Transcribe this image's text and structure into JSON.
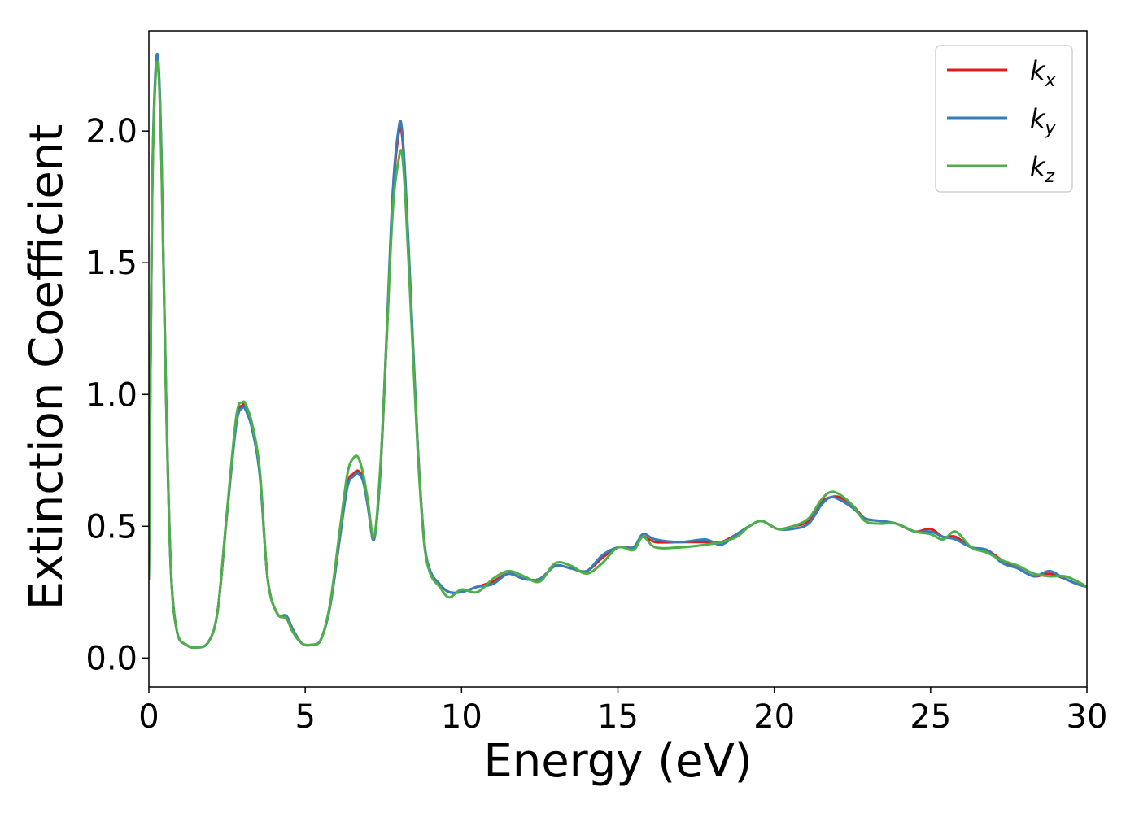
{
  "chart_data": {
    "type": "line",
    "xlabel": "Energy (eV)",
    "ylabel": "Extinction Coefficient",
    "xlim": [
      0,
      30
    ],
    "ylim": [
      -0.11,
      2.38
    ],
    "xticks": [
      "0",
      "5",
      "10",
      "15",
      "20",
      "25",
      "30"
    ],
    "yticks": [
      "0.0",
      "0.5",
      "1.0",
      "1.5",
      "2.0"
    ],
    "grid": false,
    "legend_position": "top-right",
    "series": [
      {
        "name": "k_x",
        "label_base": "k",
        "label_sub": "x",
        "color": "#e41a1c",
        "x": [
          0,
          0.1,
          0.2,
          0.3,
          0.4,
          0.55,
          0.7,
          0.9,
          1.2,
          1.5,
          1.9,
          2.2,
          2.5,
          2.8,
          3.0,
          3.1,
          3.3,
          3.55,
          3.8,
          4.1,
          4.4,
          4.6,
          4.9,
          5.2,
          5.5,
          5.8,
          6.1,
          6.35,
          6.55,
          6.7,
          6.85,
          7.0,
          7.2,
          7.4,
          7.6,
          7.8,
          8.0,
          8.1,
          8.2,
          8.4,
          8.6,
          8.8,
          9.0,
          9.3,
          9.6,
          10.0,
          10.5,
          11.0,
          11.5,
          12.0,
          12.5,
          13.0,
          13.5,
          14.0,
          14.5,
          15.0,
          15.5,
          15.8,
          16.2,
          17.0,
          17.8,
          18.3,
          18.8,
          19.2,
          19.6,
          20.1,
          20.6,
          21.1,
          21.5,
          21.8,
          22.1,
          22.5,
          22.9,
          23.4,
          23.9,
          24.5,
          25.0,
          25.4,
          25.8,
          26.3,
          26.8,
          27.3,
          27.8,
          28.3,
          28.8,
          29.3,
          29.7,
          30.0
        ],
        "y": [
          0.3,
          1.7,
          2.18,
          2.26,
          1.9,
          1.0,
          0.35,
          0.1,
          0.05,
          0.04,
          0.06,
          0.18,
          0.55,
          0.9,
          0.96,
          0.95,
          0.88,
          0.7,
          0.3,
          0.17,
          0.15,
          0.1,
          0.055,
          0.05,
          0.07,
          0.2,
          0.45,
          0.66,
          0.7,
          0.71,
          0.68,
          0.58,
          0.45,
          0.7,
          1.2,
          1.75,
          2.0,
          1.98,
          1.8,
          1.3,
          0.8,
          0.45,
          0.33,
          0.28,
          0.25,
          0.25,
          0.27,
          0.29,
          0.32,
          0.3,
          0.3,
          0.35,
          0.34,
          0.33,
          0.38,
          0.42,
          0.42,
          0.46,
          0.44,
          0.44,
          0.44,
          0.44,
          0.47,
          0.5,
          0.52,
          0.49,
          0.5,
          0.52,
          0.59,
          0.61,
          0.61,
          0.58,
          0.53,
          0.52,
          0.51,
          0.48,
          0.49,
          0.46,
          0.46,
          0.42,
          0.41,
          0.37,
          0.34,
          0.31,
          0.32,
          0.3,
          0.28,
          0.27
        ]
      },
      {
        "name": "k_y",
        "label_base": "k",
        "label_sub": "y",
        "color": "#377eb8",
        "x": [
          0,
          0.1,
          0.2,
          0.3,
          0.4,
          0.55,
          0.7,
          0.9,
          1.2,
          1.5,
          1.9,
          2.2,
          2.5,
          2.8,
          3.0,
          3.1,
          3.3,
          3.55,
          3.8,
          4.1,
          4.4,
          4.6,
          4.9,
          5.2,
          5.5,
          5.8,
          6.1,
          6.35,
          6.55,
          6.7,
          6.85,
          7.0,
          7.2,
          7.4,
          7.6,
          7.8,
          8.0,
          8.1,
          8.2,
          8.4,
          8.6,
          8.8,
          9.0,
          9.3,
          9.6,
          10.0,
          10.5,
          11.0,
          11.5,
          12.0,
          12.5,
          13.0,
          13.5,
          14.0,
          14.5,
          15.0,
          15.5,
          15.8,
          16.2,
          17.0,
          17.8,
          18.3,
          18.8,
          19.2,
          19.6,
          20.1,
          20.6,
          21.1,
          21.5,
          21.8,
          22.1,
          22.5,
          22.9,
          23.4,
          23.9,
          24.5,
          25.0,
          25.4,
          25.8,
          26.3,
          26.8,
          27.3,
          27.8,
          28.3,
          28.8,
          29.3,
          29.7,
          30.0
        ],
        "y": [
          0.3,
          1.72,
          2.2,
          2.27,
          1.92,
          1.0,
          0.35,
          0.1,
          0.05,
          0.04,
          0.06,
          0.18,
          0.55,
          0.89,
          0.95,
          0.94,
          0.87,
          0.69,
          0.3,
          0.17,
          0.16,
          0.11,
          0.055,
          0.05,
          0.07,
          0.2,
          0.45,
          0.65,
          0.69,
          0.7,
          0.67,
          0.58,
          0.45,
          0.7,
          1.22,
          1.77,
          2.02,
          2.0,
          1.82,
          1.32,
          0.8,
          0.45,
          0.33,
          0.28,
          0.25,
          0.25,
          0.27,
          0.28,
          0.32,
          0.3,
          0.3,
          0.35,
          0.34,
          0.33,
          0.39,
          0.42,
          0.42,
          0.47,
          0.45,
          0.44,
          0.45,
          0.43,
          0.47,
          0.5,
          0.52,
          0.49,
          0.49,
          0.51,
          0.58,
          0.61,
          0.6,
          0.57,
          0.53,
          0.52,
          0.51,
          0.48,
          0.48,
          0.46,
          0.45,
          0.42,
          0.41,
          0.36,
          0.34,
          0.31,
          0.33,
          0.3,
          0.28,
          0.27
        ]
      },
      {
        "name": "k_z",
        "label_base": "k",
        "label_sub": "z",
        "color": "#4daf4a",
        "x": [
          0,
          0.1,
          0.2,
          0.3,
          0.4,
          0.55,
          0.7,
          0.9,
          1.2,
          1.5,
          1.9,
          2.2,
          2.5,
          2.8,
          3.0,
          3.1,
          3.3,
          3.55,
          3.8,
          4.1,
          4.4,
          4.6,
          4.9,
          5.2,
          5.5,
          5.8,
          6.1,
          6.35,
          6.55,
          6.7,
          6.85,
          7.0,
          7.2,
          7.4,
          7.6,
          7.8,
          8.0,
          8.1,
          8.2,
          8.4,
          8.6,
          8.8,
          9.0,
          9.3,
          9.6,
          10.0,
          10.5,
          11.0,
          11.5,
          12.0,
          12.5,
          13.0,
          13.5,
          14.0,
          14.5,
          15.0,
          15.5,
          15.8,
          16.2,
          17.0,
          17.8,
          18.3,
          18.8,
          19.2,
          19.6,
          20.1,
          20.6,
          21.1,
          21.5,
          21.8,
          22.1,
          22.5,
          22.9,
          23.4,
          23.9,
          24.5,
          25.0,
          25.4,
          25.8,
          26.3,
          26.8,
          27.3,
          27.8,
          28.3,
          28.8,
          29.3,
          29.7,
          30.0
        ],
        "y": [
          0.3,
          1.7,
          2.17,
          2.24,
          1.88,
          0.98,
          0.34,
          0.1,
          0.05,
          0.04,
          0.06,
          0.18,
          0.56,
          0.92,
          0.97,
          0.96,
          0.89,
          0.71,
          0.3,
          0.17,
          0.15,
          0.1,
          0.055,
          0.05,
          0.07,
          0.21,
          0.48,
          0.7,
          0.76,
          0.76,
          0.7,
          0.6,
          0.46,
          0.72,
          1.2,
          1.7,
          1.9,
          1.91,
          1.75,
          1.27,
          0.78,
          0.44,
          0.32,
          0.27,
          0.23,
          0.26,
          0.25,
          0.3,
          0.33,
          0.31,
          0.29,
          0.36,
          0.35,
          0.32,
          0.36,
          0.42,
          0.41,
          0.46,
          0.42,
          0.42,
          0.43,
          0.44,
          0.46,
          0.5,
          0.52,
          0.49,
          0.5,
          0.53,
          0.6,
          0.63,
          0.62,
          0.58,
          0.52,
          0.51,
          0.51,
          0.48,
          0.47,
          0.45,
          0.48,
          0.42,
          0.4,
          0.37,
          0.35,
          0.32,
          0.31,
          0.31,
          0.29,
          0.27
        ]
      }
    ]
  }
}
